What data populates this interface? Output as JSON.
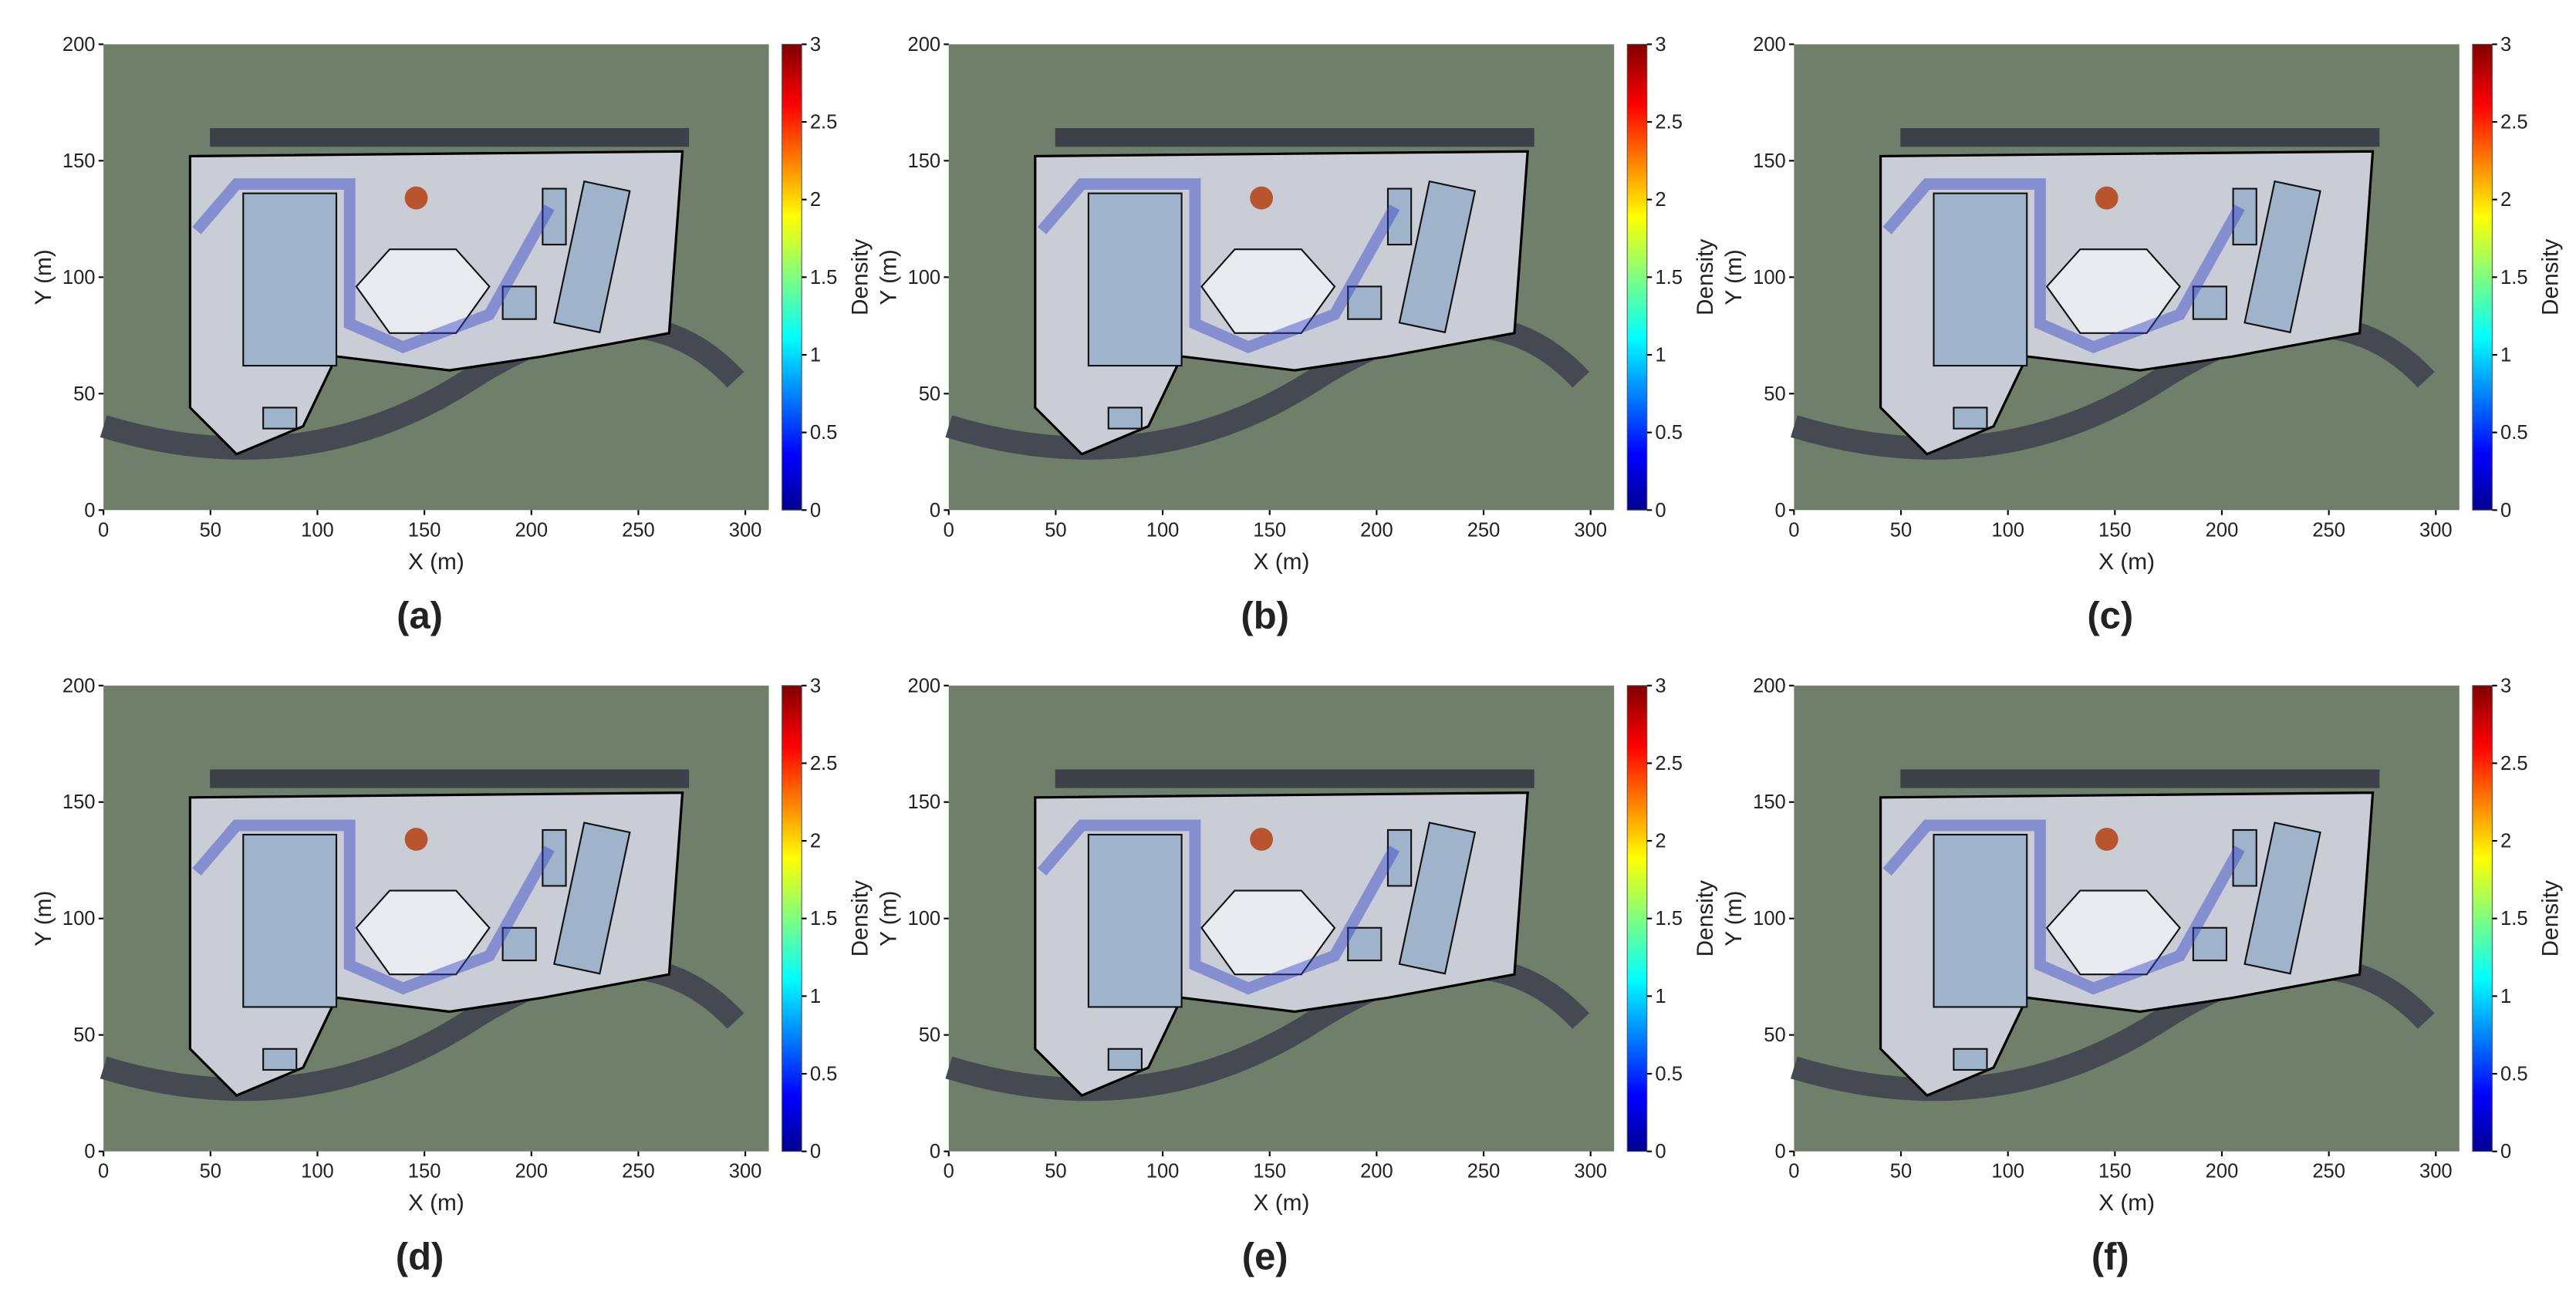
{
  "chart_data": [
    {
      "type": "heatmap",
      "label": "(a)",
      "x_label": "X (m)",
      "y_label": "Y (m)",
      "colorbar_label": "Density",
      "xlim": [
        0,
        311
      ],
      "ylim": [
        0,
        200
      ],
      "xticks": [
        0,
        50,
        100,
        150,
        200,
        250,
        300
      ],
      "yticks": [
        0,
        50,
        100,
        150,
        200
      ],
      "clim": [
        0,
        3
      ],
      "cticks": [
        0,
        0.5,
        1,
        1.5,
        2,
        2.5,
        3
      ],
      "colormap": "jet"
    },
    {
      "type": "heatmap",
      "label": "(b)",
      "x_label": "X (m)",
      "y_label": "Y (m)",
      "colorbar_label": "Density",
      "xlim": [
        0,
        311
      ],
      "ylim": [
        0,
        200
      ],
      "xticks": [
        0,
        50,
        100,
        150,
        200,
        250,
        300
      ],
      "yticks": [
        0,
        50,
        100,
        150,
        200
      ],
      "clim": [
        0,
        3
      ],
      "cticks": [
        0,
        0.5,
        1,
        1.5,
        2,
        2.5,
        3
      ],
      "colormap": "jet"
    },
    {
      "type": "heatmap",
      "label": "(c)",
      "x_label": "X (m)",
      "y_label": "Y (m)",
      "colorbar_label": "Density",
      "xlim": [
        0,
        311
      ],
      "ylim": [
        0,
        200
      ],
      "xticks": [
        0,
        50,
        100,
        150,
        200,
        250,
        300
      ],
      "yticks": [
        0,
        50,
        100,
        150,
        200
      ],
      "clim": [
        0,
        3
      ],
      "cticks": [
        0,
        0.5,
        1,
        1.5,
        2,
        2.5,
        3
      ],
      "colormap": "jet"
    },
    {
      "type": "heatmap",
      "label": "(d)",
      "x_label": "X (m)",
      "y_label": "Y (m)",
      "colorbar_label": "Density",
      "xlim": [
        0,
        311
      ],
      "ylim": [
        0,
        200
      ],
      "xticks": [
        0,
        50,
        100,
        150,
        200,
        250,
        300
      ],
      "yticks": [
        0,
        50,
        100,
        150,
        200
      ],
      "clim": [
        0,
        3
      ],
      "cticks": [
        0,
        0.5,
        1,
        1.5,
        2,
        2.5,
        3
      ],
      "colormap": "jet"
    },
    {
      "type": "heatmap",
      "label": "(e)",
      "x_label": "X (m)",
      "y_label": "Y (m)",
      "colorbar_label": "Density",
      "xlim": [
        0,
        311
      ],
      "ylim": [
        0,
        200
      ],
      "xticks": [
        0,
        50,
        100,
        150,
        200,
        250,
        300
      ],
      "yticks": [
        0,
        50,
        100,
        150,
        200
      ],
      "clim": [
        0,
        3
      ],
      "cticks": [
        0,
        0.5,
        1,
        1.5,
        2,
        2.5,
        3
      ],
      "colormap": "jet"
    },
    {
      "type": "heatmap",
      "label": "(f)",
      "x_label": "X (m)",
      "y_label": "Y (m)",
      "colorbar_label": "Density",
      "xlim": [
        0,
        311
      ],
      "ylim": [
        0,
        200
      ],
      "xticks": [
        0,
        50,
        100,
        150,
        200,
        250,
        300
      ],
      "yticks": [
        0,
        50,
        100,
        150,
        200
      ],
      "clim": [
        0,
        3
      ],
      "cticks": [
        0,
        0.5,
        1,
        1.5,
        2,
        2.5,
        3
      ],
      "colormap": "jet"
    }
  ]
}
